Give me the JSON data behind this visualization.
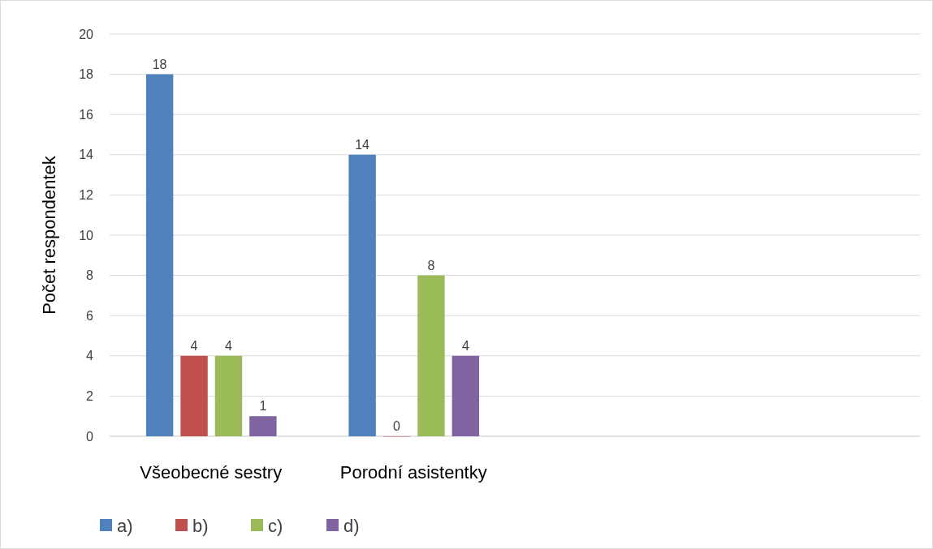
{
  "chart_data": {
    "type": "bar",
    "ylabel": "Počet respondentek",
    "categories": [
      "Všeobecné sestry",
      "Porodní asistentky",
      null,
      null
    ],
    "series": [
      {
        "name": "a)",
        "color": "#4f81bd",
        "values": [
          18,
          14,
          null,
          null
        ]
      },
      {
        "name": "b)",
        "color": "#c0504d",
        "values": [
          4,
          0,
          null,
          null
        ]
      },
      {
        "name": "c)",
        "color": "#9bbb59",
        "values": [
          4,
          8,
          null,
          null
        ]
      },
      {
        "name": "d)",
        "color": "#8064a2",
        "values": [
          1,
          4,
          null,
          null
        ]
      }
    ],
    "ylim": [
      0,
      20
    ],
    "yticks": [
      0,
      2,
      4,
      6,
      8,
      10,
      12,
      14,
      16,
      18,
      20
    ],
    "grid": "y",
    "legend": "bottom",
    "data_labels": true
  }
}
